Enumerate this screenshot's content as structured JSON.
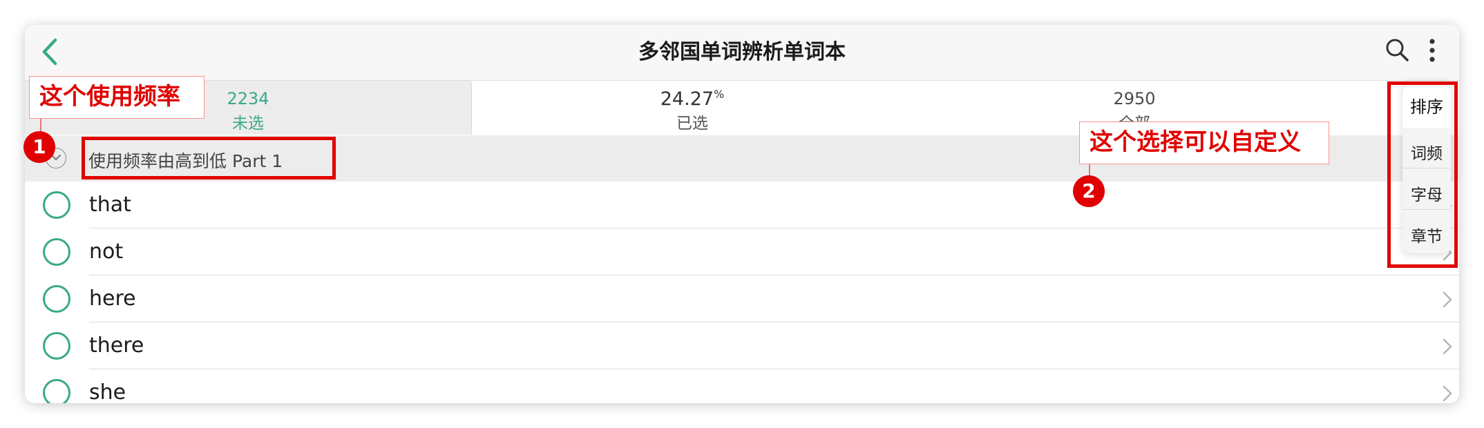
{
  "header": {
    "title": "多邻国单词辨析单词本"
  },
  "tabs": [
    {
      "count": "2234",
      "label": "未选"
    },
    {
      "count": "24.27",
      "unit": "%",
      "label": "已选"
    },
    {
      "count": "2950",
      "label": "全部"
    }
  ],
  "section": {
    "title": "使用频率由高到低 Part 1"
  },
  "words": [
    "that",
    "not",
    "here",
    "there",
    "she"
  ],
  "sort_menu": {
    "title": "排序",
    "options": [
      "词频",
      "字母",
      "章节"
    ]
  },
  "annotations": {
    "callout_1": "这个使用频率",
    "callout_2": "这个选择可以自定义",
    "badge_1": "1",
    "badge_2": "2"
  },
  "colors": {
    "accent": "#3aa889",
    "annotation_red": "#e00000"
  },
  "icons": {
    "back": "chevron-left-icon",
    "search": "search-icon",
    "more": "more-vertical-icon",
    "row_select": "circle-outline-icon",
    "row_arrow": "chevron-right-icon"
  }
}
